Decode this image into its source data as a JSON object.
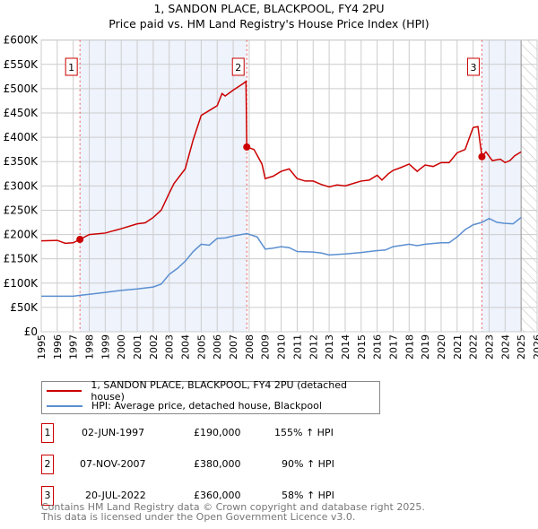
{
  "chart_data": {
    "type": "line",
    "title": "1, SANDON PLACE, BLACKPOOL, FY4 2PU",
    "subtitle": "Price paid vs. HM Land Registry's House Price Index (HPI)",
    "xlim": [
      1995,
      2026
    ],
    "ylim": [
      0,
      600
    ],
    "yticks": [
      0,
      50,
      100,
      150,
      200,
      250,
      300,
      350,
      400,
      450,
      500,
      550,
      600
    ],
    "ytick_labels": [
      "£0",
      "£50K",
      "£100K",
      "£150K",
      "£200K",
      "£250K",
      "£300K",
      "£350K",
      "£400K",
      "£450K",
      "£500K",
      "£550K",
      "£600K"
    ],
    "xticks": [
      1995,
      1996,
      1997,
      1998,
      1999,
      2000,
      2001,
      2002,
      2003,
      2004,
      2005,
      2006,
      2007,
      2008,
      2009,
      2010,
      2011,
      2012,
      2013,
      2014,
      2015,
      2016,
      2017,
      2018,
      2019,
      2020,
      2021,
      2022,
      2023,
      2024,
      2025,
      2026
    ],
    "grid": true,
    "series": [
      {
        "name": "1, SANDON PLACE, BLACKPOOL, FY4 2PU (detached house)",
        "color": "#cc0000",
        "x": [
          1995,
          1996,
          1996.5,
          1997,
          1997.42,
          1998,
          1999,
          2000,
          2001,
          2001.5,
          2002,
          2002.5,
          2003,
          2003.3,
          2004,
          2004.5,
          2005,
          2005.5,
          2006,
          2006.3,
          2006.5,
          2007,
          2007.6,
          2007.8,
          2007.85,
          2008.3,
          2008.8,
          2009,
          2009.5,
          2010,
          2010.5,
          2011,
          2011.5,
          2012,
          2012.5,
          2013,
          2013.5,
          2014,
          2014.5,
          2015,
          2015.5,
          2016,
          2016.3,
          2016.7,
          2017,
          2017.5,
          2018,
          2018.5,
          2019,
          2019.5,
          2020,
          2020.5,
          2021,
          2021.5,
          2022,
          2022.3,
          2022.55,
          2022.8,
          2023.2,
          2023.7,
          2024,
          2024.3,
          2024.6,
          2025
        ],
        "y": [
          187,
          188,
          182,
          183,
          190,
          200,
          203,
          212,
          222,
          224,
          235,
          250,
          285,
          305,
          335,
          395,
          445,
          455,
          465,
          490,
          485,
          497,
          510,
          515,
          380,
          375,
          345,
          315,
          320,
          330,
          335,
          315,
          310,
          310,
          303,
          298,
          302,
          300,
          305,
          310,
          312,
          322,
          312,
          325,
          332,
          338,
          345,
          330,
          343,
          340,
          348,
          348,
          368,
          375,
          420,
          422,
          360,
          370,
          352,
          355,
          348,
          352,
          362,
          370
        ]
      },
      {
        "name": "HPI: Average price, detached house, Blackpool",
        "color": "#5b8fd0",
        "x": [
          1995,
          1996,
          1997,
          1997.42,
          1998,
          1999,
          2000,
          2001,
          2002,
          2002.5,
          2003,
          2003.5,
          2004,
          2004.5,
          2005,
          2005.5,
          2006,
          2006.5,
          2007,
          2007.85,
          2008.5,
          2009,
          2009.5,
          2010,
          2010.5,
          2011,
          2012,
          2012.5,
          2013,
          2014,
          2015,
          2016,
          2016.5,
          2017,
          2018,
          2018.5,
          2019,
          2020,
          2020.5,
          2021,
          2021.5,
          2022,
          2022.55,
          2023,
          2023.5,
          2024,
          2024.5,
          2025
        ],
        "y": [
          73,
          73,
          73,
          75,
          77,
          81,
          85,
          88,
          92,
          98,
          118,
          130,
          145,
          165,
          180,
          178,
          192,
          193,
          197,
          202,
          195,
          170,
          172,
          175,
          173,
          165,
          164,
          162,
          158,
          160,
          163,
          167,
          168,
          175,
          180,
          177,
          180,
          183,
          183,
          195,
          210,
          220,
          225,
          233,
          225,
          223,
          222,
          235
        ]
      }
    ],
    "sales": [
      {
        "n": "1",
        "x": 1997.42,
        "y": 190,
        "date": "02-JUN-1997",
        "price": "£190,000",
        "hpi": "155% ↑ HPI"
      },
      {
        "n": "2",
        "x": 2007.85,
        "y": 380,
        "date": "07-NOV-2007",
        "price": "£380,000",
        "hpi": "90% ↑ HPI"
      },
      {
        "n": "3",
        "x": 2022.55,
        "y": 360,
        "date": "20-JUL-2022",
        "price": "£360,000",
        "hpi": "58% ↑ HPI"
      }
    ],
    "forecast_from": 2025
  },
  "footer": {
    "line1": "Contains HM Land Registry data © Crown copyright and database right 2025.",
    "line2": "This data is licensed under the Open Government Licence v3.0."
  }
}
